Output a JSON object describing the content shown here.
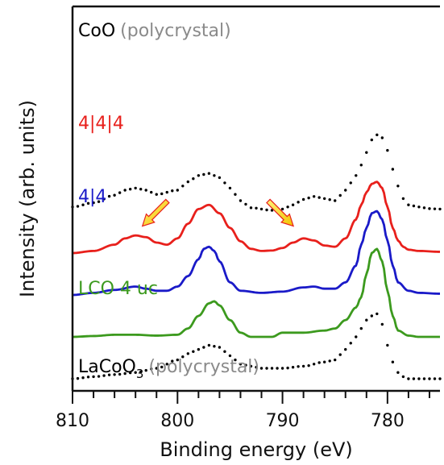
{
  "chart_data": {
    "type": "line",
    "xlabel": "Binding energy (eV)",
    "ylabel": "Intensity (arb. units)",
    "xlim": [
      810,
      775
    ],
    "x_reversed": true,
    "x_ticks": [
      810,
      800,
      790,
      780
    ],
    "grid": false,
    "series": [
      {
        "name": "CoO",
        "label_suffix": "(polycrystal)",
        "color": "#000000",
        "style": "dotted",
        "offset": 4.0,
        "x": [
          810,
          808,
          806,
          805,
          804,
          803,
          802,
          800,
          799,
          798,
          797,
          796,
          795,
          794,
          793,
          791,
          790,
          789,
          788,
          787,
          786,
          785,
          784,
          783,
          782.5,
          782,
          781.5,
          781,
          780.5,
          780,
          779.5,
          779,
          778.5,
          778,
          777,
          776,
          775
        ],
        "y": [
          0.1,
          0.2,
          0.38,
          0.5,
          0.55,
          0.5,
          0.4,
          0.5,
          0.7,
          0.85,
          0.9,
          0.8,
          0.55,
          0.25,
          0.08,
          0.02,
          0.05,
          0.15,
          0.28,
          0.35,
          0.3,
          0.25,
          0.5,
          0.85,
          1.1,
          1.4,
          1.7,
          1.82,
          1.75,
          1.45,
          1.0,
          0.6,
          0.3,
          0.15,
          0.1,
          0.06,
          0.05
        ]
      },
      {
        "name": "4|4|4",
        "color": "#e8201c",
        "style": "solid",
        "offset": 3.0,
        "x": [
          810,
          808,
          806,
          805,
          804,
          803,
          802,
          801,
          800,
          799,
          798,
          797,
          796,
          795,
          794,
          793,
          792,
          791,
          790,
          789,
          788,
          787,
          786,
          785,
          784,
          783,
          782.5,
          782,
          781.5,
          781,
          780.5,
          780,
          779.5,
          779,
          778.5,
          778,
          777,
          775
        ],
        "y": [
          0.0,
          0.05,
          0.2,
          0.35,
          0.42,
          0.38,
          0.25,
          0.2,
          0.35,
          0.7,
          1.05,
          1.15,
          0.95,
          0.6,
          0.28,
          0.1,
          0.05,
          0.06,
          0.12,
          0.25,
          0.35,
          0.3,
          0.18,
          0.15,
          0.35,
          0.8,
          1.15,
          1.45,
          1.65,
          1.7,
          1.55,
          1.1,
          0.6,
          0.3,
          0.15,
          0.08,
          0.05,
          0.03
        ]
      },
      {
        "name": "4|4",
        "color": "#1a1ac8",
        "style": "solid",
        "offset": 2.0,
        "x": [
          810,
          808,
          806,
          804,
          803,
          802,
          801,
          800,
          799,
          798,
          797.5,
          797,
          796.5,
          796,
          795,
          794,
          792,
          790,
          788,
          787,
          786,
          785,
          784,
          783,
          782.5,
          782,
          781.5,
          781,
          780.5,
          780,
          779.5,
          779,
          778,
          777,
          775
        ],
        "y": [
          0.0,
          0.05,
          0.12,
          0.2,
          0.15,
          0.1,
          0.1,
          0.2,
          0.45,
          0.85,
          1.1,
          1.15,
          1.05,
          0.8,
          0.3,
          0.1,
          0.05,
          0.08,
          0.18,
          0.2,
          0.15,
          0.15,
          0.3,
          0.7,
          1.2,
          1.6,
          1.95,
          2.0,
          1.8,
          1.3,
          0.7,
          0.3,
          0.1,
          0.05,
          0.03
        ]
      },
      {
        "name": "LCO 4 uc",
        "color": "#3c9a1e",
        "style": "solid",
        "offset": 1.0,
        "x": [
          810,
          808,
          806,
          804,
          802,
          800,
          799,
          798,
          797,
          796.5,
          796,
          795,
          794,
          793,
          791,
          790,
          788,
          786,
          785,
          784,
          783,
          782.5,
          782,
          781.5,
          781,
          780.5,
          780,
          779.5,
          779,
          778,
          777,
          775
        ],
        "y": [
          0.0,
          0.02,
          0.05,
          0.05,
          0.03,
          0.05,
          0.2,
          0.5,
          0.8,
          0.85,
          0.75,
          0.4,
          0.1,
          0.0,
          0.0,
          0.1,
          0.1,
          0.15,
          0.2,
          0.4,
          0.7,
          0.95,
          1.5,
          2.0,
          2.1,
          1.8,
          1.1,
          0.5,
          0.15,
          0.03,
          0.0,
          0.0
        ]
      },
      {
        "name": "LaCoO",
        "name_subscript": "3",
        "label_suffix": "(polycrystal)",
        "color": "#000000",
        "style": "dotted",
        "offset": 0.0,
        "x": [
          810,
          808,
          806,
          804,
          802,
          800,
          799,
          798,
          797,
          796,
          795,
          794,
          793,
          792,
          790,
          788,
          786,
          785,
          784,
          783,
          782.5,
          782,
          781.5,
          781,
          780.5,
          780,
          779.5,
          779,
          778.5,
          778,
          777,
          776,
          775
        ],
        "y": [
          0.0,
          0.05,
          0.1,
          0.15,
          0.25,
          0.45,
          0.6,
          0.7,
          0.8,
          0.75,
          0.55,
          0.35,
          0.3,
          0.25,
          0.25,
          0.3,
          0.4,
          0.45,
          0.7,
          1.0,
          1.2,
          1.4,
          1.5,
          1.55,
          1.3,
          0.8,
          0.4,
          0.15,
          0.05,
          0.0,
          0.0,
          0.0,
          0.0
        ]
      }
    ],
    "annotations": [
      {
        "type": "arrow",
        "color": "#f5d000",
        "edge": "#e8201c",
        "at_x": 803.5,
        "series": "4|4|4",
        "direction": "down-left"
      },
      {
        "type": "arrow",
        "color": "#f5d000",
        "edge": "#e8201c",
        "at_x": 788.5,
        "series": "4|4|4",
        "direction": "down-right"
      }
    ],
    "legend": "inline-labels"
  }
}
